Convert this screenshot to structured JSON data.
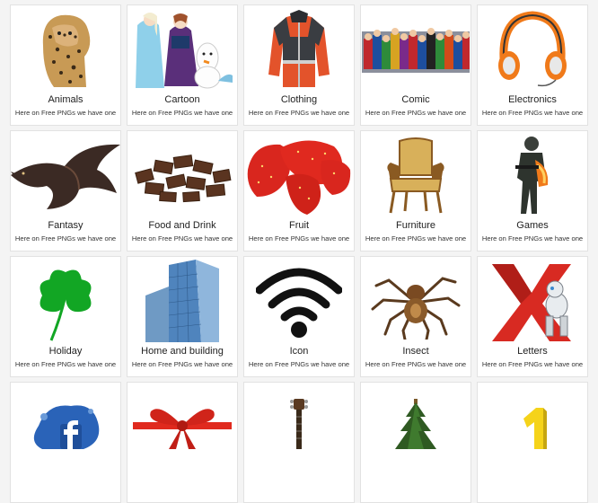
{
  "gallery": {
    "cards": [
      {
        "title": "Animals",
        "desc": "Here on Free PNGs we have one"
      },
      {
        "title": "Cartoon",
        "desc": "Here on Free PNGs we have one"
      },
      {
        "title": "Clothing",
        "desc": "Here on Free PNGs we have one"
      },
      {
        "title": "Comic",
        "desc": "Here on Free PNGs we have one"
      },
      {
        "title": "Electronics",
        "desc": "Here on Free PNGs we have one"
      },
      {
        "title": "Fantasy",
        "desc": "Here on Free PNGs we have one"
      },
      {
        "title": "Food and Drink",
        "desc": "Here on Free PNGs we have one"
      },
      {
        "title": "Fruit",
        "desc": "Here on Free PNGs we have one"
      },
      {
        "title": "Furniture",
        "desc": "Here on Free PNGs we have one"
      },
      {
        "title": "Games",
        "desc": "Here on Free PNGs we have one"
      },
      {
        "title": "Holiday",
        "desc": "Here on Free PNGs we have one"
      },
      {
        "title": "Home and building",
        "desc": "Here on Free PNGs we have one"
      },
      {
        "title": "Icon",
        "desc": "Here on Free PNGs we have one"
      },
      {
        "title": "Insect",
        "desc": "Here on Free PNGs we have one"
      },
      {
        "title": "Letters",
        "desc": "Here on Free PNGs we have one"
      }
    ]
  },
  "colors": {
    "page_bg": "#f4f4f4",
    "card_bg": "#ffffff",
    "card_border": "#e2e2e2",
    "text": "#222222"
  }
}
